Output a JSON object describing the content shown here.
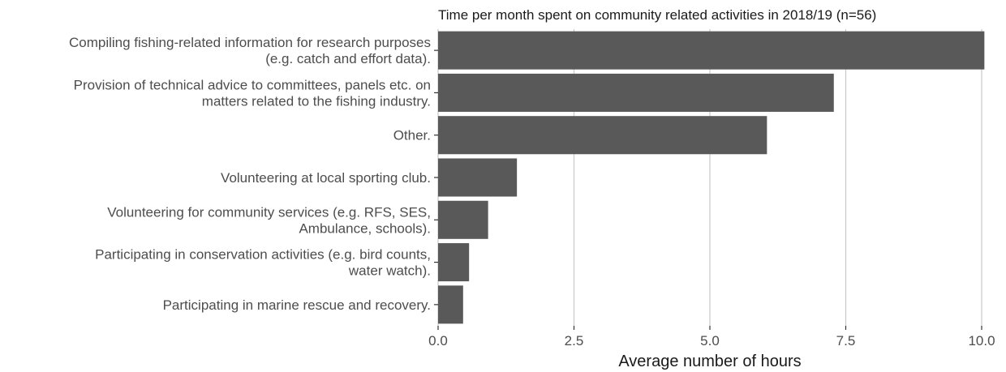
{
  "chart_data": {
    "type": "bar",
    "orientation": "horizontal",
    "title": "Time per month spent on community related activities in 2018/19 (n=56)",
    "xlabel": "Average number of hours",
    "ylabel": "",
    "xlim": [
      0,
      10
    ],
    "xticks": [
      0.0,
      2.5,
      5.0,
      7.5,
      10.0
    ],
    "xtick_labels": [
      "0.0",
      "2.5",
      "5.0",
      "7.5",
      "10.0"
    ],
    "grid": "vertical major gridlines",
    "bar_color": "#595959",
    "grid_color": "#c8c8c8",
    "categories": [
      [
        "Compiling fishing-related information for research purposes",
        "(e.g. catch and effort data)."
      ],
      [
        "Provision of technical advice to committees, panels etc. on",
        "matters related to the fishing industry."
      ],
      [
        "Other."
      ],
      [
        "Volunteering at local sporting club."
      ],
      [
        "Volunteering for community services (e.g. RFS, SES,",
        "Ambulance, schools)."
      ],
      [
        "Participating in conservation activities (e.g. bird counts,",
        "water watch)."
      ],
      [
        "Participating in marine rescue and recovery."
      ]
    ],
    "values": [
      10.05,
      7.28,
      6.05,
      1.45,
      0.92,
      0.57,
      0.46
    ]
  }
}
